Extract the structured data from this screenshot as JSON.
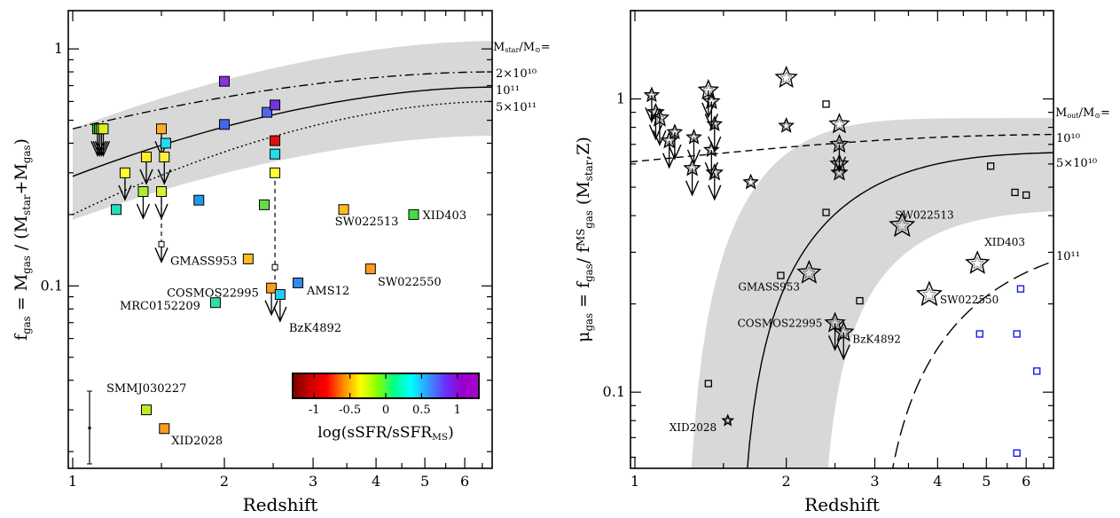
{
  "chart_data": [
    {
      "type": "scatter",
      "xlabel": "Redshift",
      "ylabel": "f_gas = M_gas / (M_star + M_gas)",
      "ylabel_parts": {
        "f": "f",
        "sub_gas": "gas",
        "eq": "= M",
        "sub_gas2": "gas",
        "div": "/ (M",
        "sub_star": "star",
        "plus": "+M",
        "sub_gas3": "gas",
        "close": ")"
      },
      "xscale": "log",
      "yscale": "log",
      "xlim": [
        0.98,
        6.8
      ],
      "ylim": [
        0.017,
        1.45
      ],
      "xticks": [
        1,
        2,
        3,
        4,
        5,
        6
      ],
      "yticks": [
        0.1,
        1
      ],
      "ytick_labels": [
        "0.1",
        "1"
      ],
      "models_label": "M_star/M_sun=",
      "models_label_parts": {
        "m": "M",
        "sub": "star",
        "rest": "/M",
        "sun": "⊙",
        "eq": "="
      },
      "models": [
        {
          "label": "2×10¹⁰",
          "style": "dashdot",
          "y_at_x1": 0.46,
          "y_at_x6.8": 0.8
        },
        {
          "label": "10¹¹",
          "style": "solid",
          "y_at_x1": 0.29,
          "y_at_x6.8": 0.69
        },
        {
          "label": "5×10¹¹",
          "style": "dotted",
          "y_at_x1": 0.2,
          "y_at_x6.8": 0.6
        }
      ],
      "band": {
        "lower_at_x1": 0.19,
        "upper_at_x1": 0.46,
        "lower_at_x6.8": 0.43,
        "upper_at_x6.8": 1.08
      },
      "colorbar": {
        "label": "log(sSFR/sSFR_MS)",
        "label_parts": {
          "main": "log(sSFR/sSFR",
          "sub": "MS",
          "close": ")"
        },
        "range": [
          -1.3,
          1.3
        ],
        "ticks": [
          "-1",
          "-0.5",
          "0",
          "0.5",
          "1"
        ],
        "colors": [
          "#7a0000",
          "#c80000",
          "#ff0000",
          "#ff8800",
          "#ffff00",
          "#88ff00",
          "#00ff88",
          "#00ffff",
          "#3399ff",
          "#6633ff",
          "#9900cc",
          "#aa00cc"
        ]
      },
      "points": [
        {
          "z": 1.12,
          "f": 0.46,
          "color": "#33cc33",
          "upper": true
        },
        {
          "z": 1.13,
          "f": 0.46,
          "color": "#44dd44",
          "upper": true
        },
        {
          "z": 1.14,
          "f": 0.46,
          "color": "#99ee33",
          "upper": true
        },
        {
          "z": 1.15,
          "f": 0.46,
          "color": "#ddee22",
          "upper": true
        },
        {
          "z": 1.22,
          "f": 0.21,
          "color": "#22ddbb"
        },
        {
          "z": 1.27,
          "f": 0.3,
          "color": "#ffff33",
          "upper": true
        },
        {
          "z": 1.38,
          "f": 0.25,
          "color": "#aaee33",
          "upper": true
        },
        {
          "z": 1.4,
          "f": 0.35,
          "color": "#ffee22",
          "upper": true
        },
        {
          "z": 1.5,
          "f": 0.46,
          "color": "#ffaa22",
          "upper": true
        },
        {
          "z": 1.52,
          "f": 0.35,
          "color": "#ffee44",
          "upper": true
        },
        {
          "z": 1.5,
          "f": 0.25,
          "color": "#ddee33",
          "upper": true
        },
        {
          "z": 1.53,
          "f": 0.4,
          "color": "#22ddee"
        },
        {
          "z": 1.5,
          "f": 0.15,
          "color": "#ffffff",
          "upper": true,
          "label": "GMASS953",
          "small": true
        },
        {
          "z": 1.78,
          "f": 0.23,
          "color": "#2299ee"
        },
        {
          "z": 2.0,
          "f": 0.73,
          "color": "#8833dd"
        },
        {
          "z": 2.0,
          "f": 0.48,
          "color": "#4466ee"
        },
        {
          "z": 2.23,
          "f": 0.13,
          "color": "#ffbb22"
        },
        {
          "z": 2.4,
          "f": 0.22,
          "color": "#66dd44"
        },
        {
          "z": 2.43,
          "f": 0.54,
          "color": "#5566ee"
        },
        {
          "z": 2.52,
          "f": 0.58,
          "color": "#7733dd"
        },
        {
          "z": 2.52,
          "f": 0.41,
          "color": "#dd1111"
        },
        {
          "z": 2.52,
          "f": 0.36,
          "color": "#22ddee"
        },
        {
          "z": 2.52,
          "f": 0.3,
          "color": "#ffff33"
        },
        {
          "z": 2.52,
          "f": 0.12,
          "color": "#ffffff",
          "small": true
        },
        {
          "z": 2.48,
          "f": 0.098,
          "color": "#ff9922",
          "upper": true,
          "label": "COSMOS22995"
        },
        {
          "z": 2.58,
          "f": 0.092,
          "color": "#22ccee",
          "upper": true,
          "label": "BzK4892"
        },
        {
          "z": 2.8,
          "f": 0.103,
          "color": "#3388ee",
          "label": "AMS12"
        },
        {
          "z": 1.92,
          "f": 0.085,
          "color": "#33ddaa",
          "label": "MRC0152209"
        },
        {
          "z": 3.45,
          "f": 0.21,
          "color": "#ffbb22",
          "label": "SW022513"
        },
        {
          "z": 4.75,
          "f": 0.2,
          "color": "#44dd44",
          "label": "XID403"
        },
        {
          "z": 3.9,
          "f": 0.118,
          "color": "#ff9922",
          "label": "SW022550"
        },
        {
          "z": 1.4,
          "f": 0.03,
          "color": "#bbee22",
          "label": "SMMJ030227"
        },
        {
          "z": 1.52,
          "f": 0.025,
          "color": "#ff9922",
          "label": "XID2028"
        }
      ]
    },
    {
      "type": "scatter",
      "xlabel": "Redshift",
      "ylabel": "μ_gas = f_gas / f_gas^MS (M_star, Z)",
      "ylabel_parts": {
        "mu": "μ",
        "sub_gas": "gas",
        "eq": "= f",
        "sub_gas2": "gas",
        "div": "/ f",
        "sup_ms": "MS",
        "sub_gas3": "gas",
        "args": "(M",
        "sub_star": "star",
        "close": ",Z)"
      },
      "xscale": "log",
      "yscale": "log",
      "xlim": [
        0.98,
        6.8
      ],
      "ylim": [
        0.055,
        2.0
      ],
      "xticks": [
        1,
        2,
        3,
        4,
        5,
        6
      ],
      "yticks": [
        0.1,
        1
      ],
      "ytick_labels": [
        "0.1",
        "1"
      ],
      "models_label": "M_out/M_sun=",
      "models_label_parts": {
        "m": "M",
        "sub": "out",
        "rest": "/M",
        "sun": "⊙",
        "eq": "="
      },
      "models": [
        {
          "label": "10¹⁰",
          "style": "dashed"
        },
        {
          "label": "5×10¹⁰",
          "style": "solid"
        },
        {
          "label": "10¹¹",
          "style": "longdash"
        }
      ],
      "labels": [
        "SW022513",
        "XID403",
        "GMASS953",
        "SW022550",
        "COSMOS22995",
        "BzK4892",
        "XID2028"
      ],
      "stars": [
        {
          "z": 1.08,
          "mu": 1.03,
          "size": 8,
          "upper": true
        },
        {
          "z": 1.1,
          "mu": 0.9,
          "size": 9,
          "upper": true
        },
        {
          "z": 1.12,
          "mu": 0.86,
          "size": 10,
          "upper": true
        },
        {
          "z": 1.17,
          "mu": 0.72,
          "size": 9,
          "upper": true
        },
        {
          "z": 1.2,
          "mu": 0.77,
          "size": 8,
          "upper": true
        },
        {
          "z": 1.3,
          "mu": 0.58,
          "size": 9,
          "upper": true
        },
        {
          "z": 1.31,
          "mu": 0.74,
          "size": 8,
          "upper": true
        },
        {
          "z": 1.4,
          "mu": 1.07,
          "size": 11,
          "upper": true
        },
        {
          "z": 1.42,
          "mu": 0.98,
          "size": 9,
          "upper": true
        },
        {
          "z": 1.44,
          "mu": 0.82,
          "size": 8,
          "upper": true
        },
        {
          "z": 1.44,
          "mu": 0.56,
          "size": 9,
          "upper": true
        },
        {
          "z": 1.42,
          "mu": 0.67,
          "size": 8,
          "upper": true
        },
        {
          "z": 1.7,
          "mu": 0.52,
          "size": 8
        },
        {
          "z": 2.0,
          "mu": 1.18,
          "size": 12
        },
        {
          "z": 2.0,
          "mu": 0.81,
          "size": 8
        },
        {
          "z": 2.55,
          "mu": 0.82,
          "size": 11
        },
        {
          "z": 2.55,
          "mu": 0.7,
          "size": 10,
          "upper": true
        },
        {
          "z": 2.55,
          "mu": 0.6,
          "size": 10
        },
        {
          "z": 2.55,
          "mu": 0.56,
          "size": 9
        },
        {
          "z": 3.4,
          "mu": 0.37,
          "size": 14,
          "label": "SW022513"
        },
        {
          "z": 4.8,
          "mu": 0.275,
          "size": 13,
          "label": "XID403"
        },
        {
          "z": 2.22,
          "mu": 0.255,
          "size": 13,
          "label": "GMASS953"
        },
        {
          "z": 3.85,
          "mu": 0.215,
          "size": 14,
          "label": "SW022550"
        },
        {
          "z": 2.5,
          "mu": 0.172,
          "size": 11,
          "upper": true,
          "label": "COSMOS22995"
        },
        {
          "z": 2.6,
          "mu": 0.16,
          "size": 11,
          "upper": true,
          "label": "BzK4892"
        },
        {
          "z": 1.53,
          "mu": 0.08,
          "size": 6,
          "label": "XID2028"
        }
      ],
      "open_squares": [
        {
          "z": 2.4,
          "mu": 0.96
        },
        {
          "z": 2.4,
          "mu": 0.41
        },
        {
          "z": 1.95,
          "mu": 0.25
        },
        {
          "z": 2.8,
          "mu": 0.205
        },
        {
          "z": 1.4,
          "mu": 0.107
        },
        {
          "z": 5.1,
          "mu": 0.59
        },
        {
          "z": 6.0,
          "mu": 0.47
        },
        {
          "z": 5.7,
          "mu": 0.48
        }
      ],
      "blue_squares": [
        {
          "z": 5.85,
          "mu": 0.225
        },
        {
          "z": 4.85,
          "mu": 0.158
        },
        {
          "z": 5.75,
          "mu": 0.158
        },
        {
          "z": 6.3,
          "mu": 0.118
        },
        {
          "z": 5.75,
          "mu": 0.062
        }
      ]
    }
  ]
}
